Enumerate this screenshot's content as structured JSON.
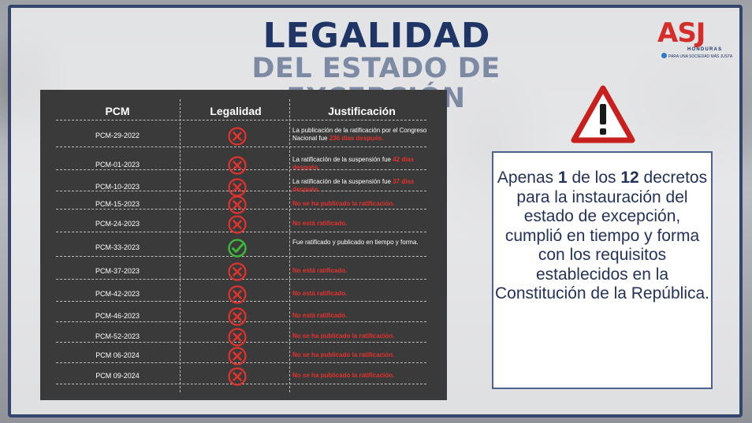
{
  "header": {
    "title": "LEGALIDAD",
    "subtitle": "DEL ESTADO DE EXCEPCIÓN"
  },
  "logo": {
    "name": "ASJ",
    "country": "HONDURAS",
    "tagline": "PARA UNA SOCIEDAD MÁS JUSTA"
  },
  "table": {
    "headers": [
      "PCM",
      "Legalidad",
      "Justificación"
    ],
    "rows": [
      {
        "pcm": "PCM-29-2022",
        "legal": false,
        "just_pre": "La publicación de la ratificación por el Congreso Nacional fue ",
        "just_red": "236 días después.",
        "just_post": ""
      },
      {
        "pcm": "PCM-01-2023",
        "legal": false,
        "just_pre": "La ratificación de la suspensión fue ",
        "just_red": "42 días después.",
        "just_post": ""
      },
      {
        "pcm": "PCM-10-2023",
        "legal": false,
        "just_pre": "La ratificación de la suspensión fue ",
        "just_red": "37 días después.",
        "just_post": ""
      },
      {
        "pcm": "PCM-15-2023",
        "legal": false,
        "just_pre": "",
        "just_red": "No se ha publicado la ratificación.",
        "just_post": ""
      },
      {
        "pcm": "PCM-24-2023",
        "legal": false,
        "just_pre": "",
        "just_red": "No está ratificado.",
        "just_post": ""
      },
      {
        "pcm": "PCM-33-2023",
        "legal": true,
        "just_pre": "Fue ratificado y publicado en tiempo y forma.",
        "just_red": "",
        "just_post": ""
      },
      {
        "pcm": "PCM-37-2023",
        "legal": false,
        "just_pre": "",
        "just_red": "No está ratificado.",
        "just_post": ""
      },
      {
        "pcm": "PCM-42-2023",
        "legal": false,
        "just_pre": "",
        "just_red": "No está ratificado.",
        "just_post": ""
      },
      {
        "pcm": "PCM-46-2023",
        "legal": false,
        "just_pre": "",
        "just_red": "No está ratificado.",
        "just_post": ""
      },
      {
        "pcm": "PCM-52-2023",
        "legal": false,
        "just_pre": "",
        "just_red": "No se ha publicado la ratificación.",
        "just_post": ""
      },
      {
        "pcm": "PCM 06-2024",
        "legal": false,
        "just_pre": "",
        "just_red": "No se ha publicado la ratificación.",
        "just_post": ""
      },
      {
        "pcm": "PCM 09-2024",
        "legal": false,
        "just_pre": "",
        "just_red": "No se ha publicado la ratificación.",
        "just_post": ""
      }
    ]
  },
  "info": {
    "t1": "Apenas ",
    "n1": "1",
    "t2": " de los ",
    "n2": "12",
    "t3": " decretos para la instauración del estado de excepción, cumplió en tiempo y forma con los requisitos establecidos en la Constitución de la República."
  },
  "icons": {
    "warning": "warning-triangle-icon",
    "invalid": "red-x-circle-icon",
    "valid": "green-check-circle-icon"
  },
  "colors": {
    "navy": "#1f3566",
    "red": "#e2322d",
    "green": "#3db43a",
    "panel": "#3a3a3a"
  }
}
